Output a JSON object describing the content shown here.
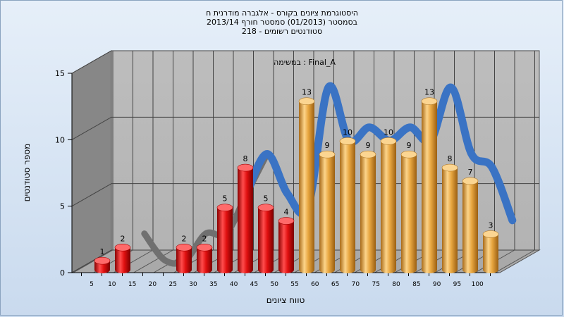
{
  "chart_data": {
    "type": "bar",
    "title_lines": [
      "היסטוגרמת ציונים בקורס - אלגברה מודרנית ח",
      "בסמסטר  (01/2013)  סמסטר חורף  2013/14",
      "סטודנטים רשומים - 218"
    ],
    "series_label": "במשימה : Final_A",
    "xlabel": "טווח ציונים",
    "ylabel": "מספר סטודנטים",
    "ylim": [
      0,
      15
    ],
    "y_ticks": [
      0,
      5,
      10,
      15
    ],
    "grid": true,
    "categories": [
      "5",
      "10",
      "15",
      "20",
      "25",
      "30",
      "35",
      "40",
      "45",
      "50",
      "55",
      "60",
      "65",
      "70",
      "75",
      "80",
      "85",
      "90",
      "95",
      "100"
    ],
    "values": [
      1,
      2,
      0,
      0,
      2,
      2,
      5,
      8,
      5,
      4,
      13,
      9,
      10,
      9,
      10,
      9,
      13,
      8,
      7,
      3
    ],
    "bar_colors": [
      "#e01010",
      "#e01010",
      "#e01010",
      "#e01010",
      "#e01010",
      "#e01010",
      "#e01010",
      "#e01010",
      "#e01010",
      "#e01010",
      "#e8a640",
      "#e8a640",
      "#e8a640",
      "#e8a640",
      "#e8a640",
      "#e8a640",
      "#e8a640",
      "#e8a640",
      "#e8a640",
      "#e8a640"
    ],
    "line_color": "#3a73c4",
    "line_dark_color": "#707070"
  }
}
